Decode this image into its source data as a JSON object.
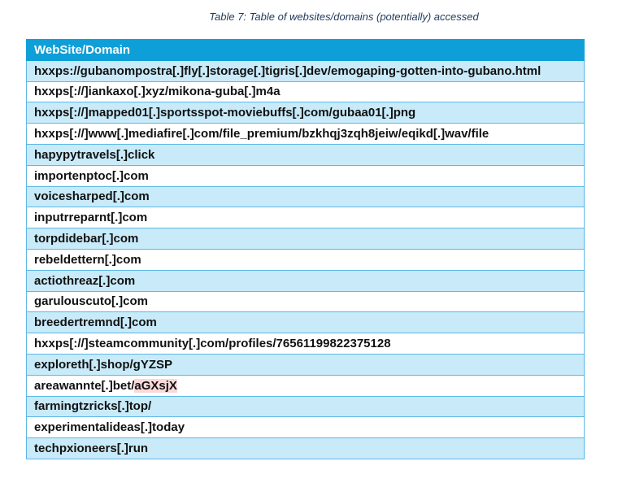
{
  "caption": "Table 7: Table of websites/domains (potentially) accessed",
  "table": {
    "header": "WebSite/Domain",
    "rows": [
      "hxxps://gubanompostra[.]fly[.]storage[.]tigris[.]dev/emogaping-gotten-into-gubano.html",
      "hxxps[://]iankaxo[.]xyz/mikona-guba[.]m4a",
      "hxxps[://]mapped01[.]sportsspot-moviebuffs[.]com/gubaa01[.]png",
      "hxxps[://]www[.]mediafire[.]com/file_premium/bzkhqj3zqh8jeiw/eqikd[.]wav/file",
      "hapypytravels[.]click",
      "importenptoc[.]com",
      "voicesharped[.]com",
      "inputrreparnt[.]com",
      "torpdidebar[.]com",
      "rebeldettern[.]com",
      "actiothreaz[.]com",
      "garulouscuto[.]com",
      "breedertremnd[.]com",
      "hxxps[://]steamcommunity[.]com/profiles/76561199822375128",
      "exploreth[.]shop/gYZSP",
      "areawannte[.]bet/aGXsjX",
      "farmingtzricks[.]top/",
      "experimentalideas[.]today",
      "techpxioneers[.]run"
    ]
  }
}
